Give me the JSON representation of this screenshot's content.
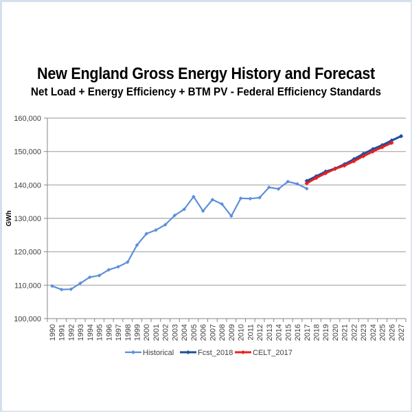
{
  "chart_data": {
    "type": "line",
    "title": "New England Gross Energy History and Forecast",
    "subtitle": "Net Load + Energy Efficiency + BTM PV - Federal Efficiency Standards",
    "xlabel": "",
    "ylabel": "GWh",
    "ylim": [
      100000,
      160000
    ],
    "yticks": [
      100000,
      110000,
      120000,
      130000,
      140000,
      150000,
      160000
    ],
    "ytick_labels": [
      "100,000",
      "110,000",
      "120,000",
      "130,000",
      "140,000",
      "150,000",
      "160,000"
    ],
    "grid": true,
    "legend_position": "bottom",
    "categories": [
      "1990",
      "1991",
      "1992",
      "1993",
      "1994",
      "1995",
      "1996",
      "1997",
      "1998",
      "1999",
      "2000",
      "2001",
      "2002",
      "2003",
      "2004",
      "2005",
      "2006",
      "2007",
      "2008",
      "2009",
      "2010",
      "2011",
      "2012",
      "2013",
      "2014",
      "2015",
      "2016",
      "2017",
      "2018",
      "2019",
      "2020",
      "2021",
      "2022",
      "2023",
      "2024",
      "2025",
      "2026",
      "2027"
    ],
    "series": [
      {
        "name": "Historical",
        "color": "#5b8fd9",
        "start": "1990",
        "values": [
          109750,
          108700,
          108800,
          110600,
          112400,
          112900,
          114600,
          115500,
          116900,
          122000,
          125400,
          126500,
          128100,
          130900,
          132700,
          136500,
          132200,
          135600,
          134300,
          130700,
          136000,
          135900,
          136200,
          139300,
          138800,
          141000,
          140300,
          138900
        ]
      },
      {
        "name": "Fcst_2018",
        "color": "#1f4e9c",
        "start": "2017",
        "values": [
          141200,
          142600,
          144000,
          144900,
          146200,
          147700,
          149300,
          150700,
          151900,
          153300,
          154600
        ]
      },
      {
        "name": "CELT_2017",
        "color": "#e8201d",
        "start": "2017",
        "values": [
          140500,
          142100,
          143500,
          144800,
          145800,
          147100,
          148600,
          150000,
          151300,
          152600
        ]
      }
    ]
  }
}
